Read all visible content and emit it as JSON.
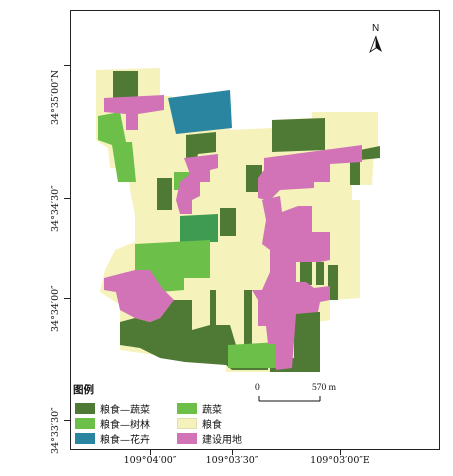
{
  "colors": {
    "grain_vegetable": "#4f7a35",
    "grain_forest": "#6cc04a",
    "grain_flower": "#2a86a0",
    "vegetable": "#6cc04a",
    "grain": "#f5f2bc",
    "construction": "#d272b7",
    "forest_block": "#3f9a52"
  },
  "lat_labels": [
    "34°35′00″N",
    "34°34′30″",
    "34°34′00″",
    "34°33′30″"
  ],
  "lon_labels": [
    "109°04′00″",
    "109°03′30″",
    "109°03′00″E"
  ],
  "north": {
    "letter": "N",
    "icon": "north-arrow-icon"
  },
  "legend": {
    "title": "图例",
    "items": [
      {
        "label": "粮食—蔬菜",
        "color_key": "grain_vegetable"
      },
      {
        "label": "粮食—树林",
        "color_key": "grain_forest"
      },
      {
        "label": "粮食—花卉",
        "color_key": "grain_flower"
      },
      {
        "label": "蔬菜",
        "color_key": "vegetable"
      },
      {
        "label": "粮食",
        "color_key": "grain"
      },
      {
        "label": "建设用地",
        "color_key": "construction"
      }
    ]
  },
  "scale": {
    "start": "0",
    "end": "570 m"
  }
}
